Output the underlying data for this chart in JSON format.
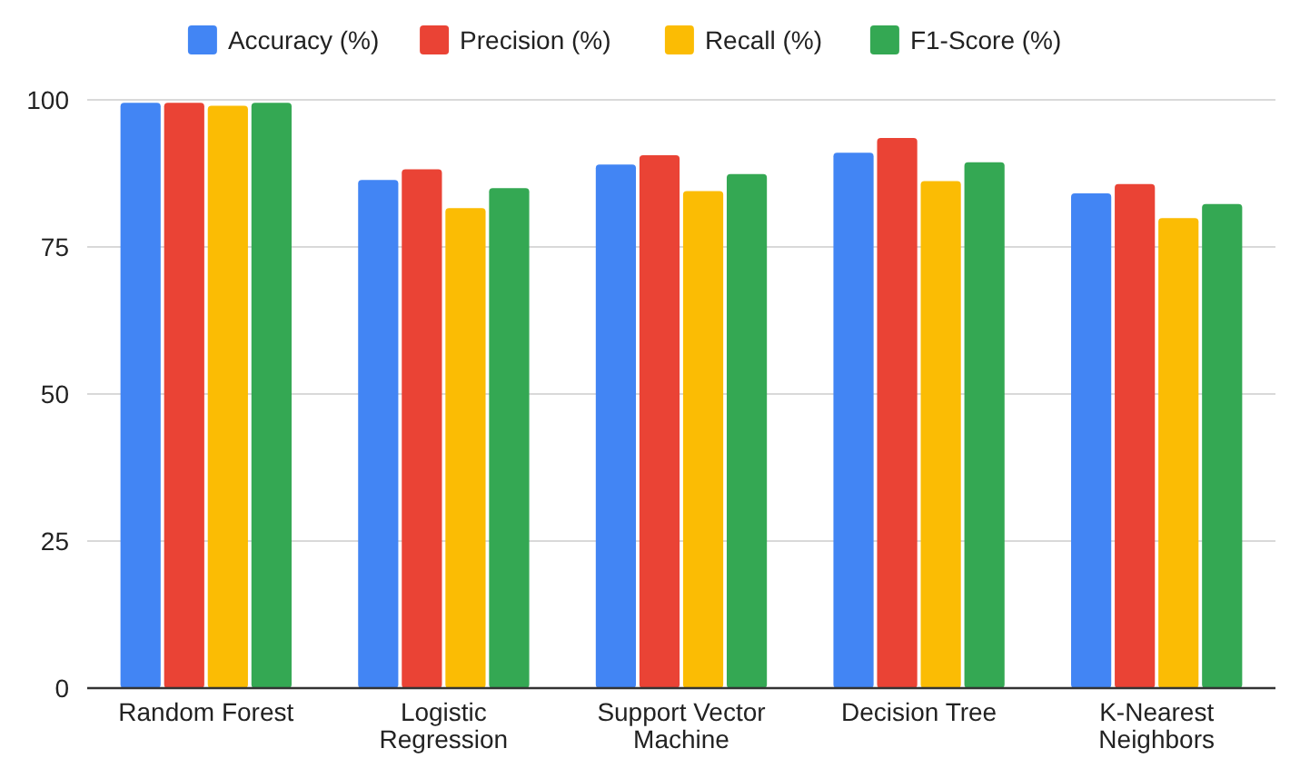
{
  "chart_data": {
    "type": "bar",
    "categories": [
      "Random Forest",
      "Logistic Regression",
      "Support Vector Machine",
      "Decision Tree",
      "K-Nearest Neighbors"
    ],
    "series": [
      {
        "name": "Accuracy (%)",
        "color": "#4285f4",
        "values": [
          99.5,
          86.4,
          89.0,
          91.0,
          84.1
        ]
      },
      {
        "name": "Precision (%)",
        "color": "#ea4335",
        "values": [
          99.5,
          88.2,
          90.6,
          93.5,
          85.7
        ]
      },
      {
        "name": "Recall (%)",
        "color": "#fbbc04",
        "values": [
          99.0,
          81.6,
          84.5,
          86.2,
          79.9
        ]
      },
      {
        "name": "F1-Score (%)",
        "color": "#34a853",
        "values": [
          99.5,
          85.0,
          87.4,
          89.4,
          82.3
        ]
      }
    ],
    "ylim": [
      0,
      100
    ],
    "yticks": [
      0,
      25,
      50,
      75,
      100
    ],
    "grid": "y",
    "legend": "top"
  }
}
